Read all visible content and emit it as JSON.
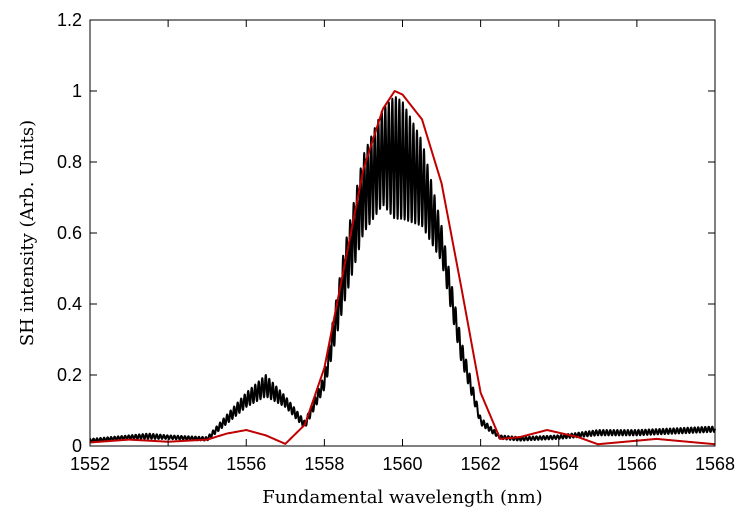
{
  "chart_data": {
    "type": "line",
    "title": "",
    "xlabel": "Fundamental wavelength (nm)",
    "ylabel": "SH intensity (Arb. Units)",
    "xlim": [
      1552,
      1568
    ],
    "ylim": [
      0,
      1.2
    ],
    "xticks": [
      1552,
      1554,
      1556,
      1558,
      1560,
      1562,
      1564,
      1566,
      1568
    ],
    "yticks": [
      0,
      0.2,
      0.4,
      0.6,
      0.8,
      1,
      1.2
    ],
    "xtick_labels": [
      "1552",
      "1554",
      "1556",
      "1558",
      "1560",
      "1562",
      "1564",
      "1566",
      "1568"
    ],
    "ytick_labels": [
      "0",
      "0.2",
      "0.4",
      "0.6",
      "0.8",
      "1",
      "1.2"
    ],
    "grid": false,
    "legend": "none",
    "series": [
      {
        "color": "#000000",
        "style": "oscillating measured trace",
        "x": [
          1552,
          1553,
          1553.5,
          1554,
          1555,
          1556,
          1556.5,
          1557,
          1557.5,
          1558,
          1558.5,
          1559,
          1559.5,
          1559.8,
          1560,
          1560.5,
          1561,
          1561.5,
          1562,
          1562.5,
          1563,
          1564,
          1565,
          1566,
          1567,
          1568
        ],
        "y_upper": [
          0.02,
          0.03,
          0.035,
          0.03,
          0.025,
          0.15,
          0.2,
          0.14,
          0.07,
          0.2,
          0.55,
          0.82,
          0.95,
          0.985,
          0.97,
          0.86,
          0.62,
          0.3,
          0.08,
          0.03,
          0.025,
          0.03,
          0.045,
          0.045,
          0.05,
          0.055
        ],
        "y_lower": [
          0.01,
          0.02,
          0.02,
          0.02,
          0.015,
          0.11,
          0.14,
          0.11,
          0.05,
          0.16,
          0.4,
          0.6,
          0.68,
          0.64,
          0.64,
          0.62,
          0.52,
          0.24,
          0.06,
          0.02,
          0.015,
          0.02,
          0.03,
          0.03,
          0.035,
          0.04
        ]
      },
      {
        "color": "#c00000",
        "style": "smooth simulated curve",
        "x": [
          1552,
          1553,
          1554,
          1555,
          1555.5,
          1556,
          1556.5,
          1557,
          1557.5,
          1558,
          1558.5,
          1559,
          1559.5,
          1559.8,
          1560,
          1560.5,
          1561,
          1561.5,
          1562,
          1562.5,
          1563,
          1563.7,
          1564.5,
          1565,
          1565.5,
          1566.5,
          1567.5,
          1568
        ],
        "y": [
          0.01,
          0.018,
          0.012,
          0.018,
          0.035,
          0.045,
          0.03,
          0.006,
          0.06,
          0.22,
          0.5,
          0.78,
          0.95,
          1,
          0.99,
          0.92,
          0.74,
          0.45,
          0.15,
          0.02,
          0.025,
          0.045,
          0.025,
          0.005,
          0.01,
          0.02,
          0.01,
          0.005
        ]
      }
    ]
  }
}
